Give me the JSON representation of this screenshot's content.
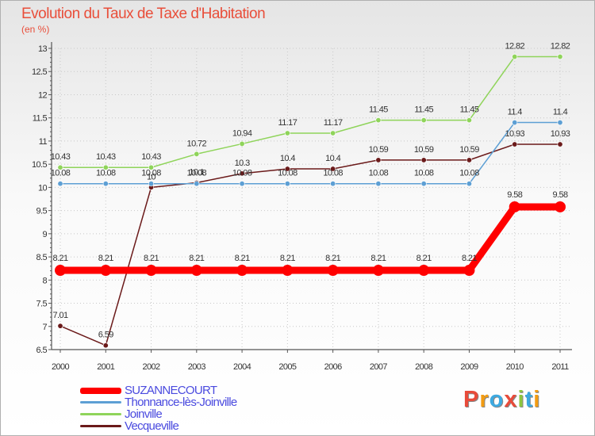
{
  "title": "Evolution du Taux de Taxe d'Habitation",
  "unit": "(en %)",
  "logo_text": "Proxiti",
  "logo_colors": [
    "#e84b3a",
    "#f39c12",
    "#3da9e0",
    "#e84b3a",
    "#8cc63f",
    "#3da9e0",
    "#f39c12"
  ],
  "chart_data": {
    "type": "line",
    "title": "Evolution du Taux de Taxe d'Habitation",
    "ylabel": "(en %)",
    "xlabel": "",
    "categories": [
      "2000",
      "2001",
      "2002",
      "2003",
      "2004",
      "2005",
      "2006",
      "2007",
      "2008",
      "2009",
      "2010",
      "2011"
    ],
    "ylim": [
      6.5,
      13
    ],
    "yticks": [
      6.5,
      7,
      7.5,
      8,
      8.5,
      9,
      9.5,
      10,
      10.5,
      11,
      11.5,
      12,
      12.5,
      13
    ],
    "series": [
      {
        "name": "SUZANNECOURT",
        "color": "#ff0000",
        "values": [
          8.21,
          8.21,
          8.21,
          8.21,
          8.21,
          8.21,
          8.21,
          8.21,
          8.21,
          8.21,
          9.58,
          9.58
        ],
        "labels": [
          "8.21",
          "8.21",
          "8.21",
          "8.21",
          "8.21",
          "8.21",
          "8.21",
          "8.21",
          "8.21",
          "8.21",
          "9.58",
          "9.58"
        ]
      },
      {
        "name": "Thonnance-lès-Joinville",
        "color": "#5d9fd4",
        "values": [
          10.08,
          10.08,
          10.08,
          10.08,
          10.08,
          10.08,
          10.08,
          10.08,
          10.08,
          10.08,
          11.4,
          11.4
        ],
        "labels": [
          "10.08",
          "10.08",
          "10.08",
          "10.08",
          "10.08",
          "10.08",
          "10.08",
          "10.08",
          "10.08",
          "10.08",
          "11.4",
          "11.4"
        ]
      },
      {
        "name": "Joinville",
        "color": "#8fd45a",
        "values": [
          10.43,
          10.43,
          10.43,
          10.72,
          10.94,
          11.17,
          11.17,
          11.45,
          11.45,
          11.45,
          12.82,
          12.82
        ],
        "labels": [
          "10.43",
          "10.43",
          "10.43",
          "10.72",
          "10.94",
          "11.17",
          "11.17",
          "11.45",
          "11.45",
          "11.45",
          "12.82",
          "12.82"
        ]
      },
      {
        "name": "Vecqueville",
        "color": "#6b1a1a",
        "values": [
          7.01,
          6.59,
          10.0,
          10.1,
          10.3,
          10.4,
          10.4,
          10.59,
          10.59,
          10.59,
          10.93,
          10.93
        ],
        "labels": [
          "7.01",
          "6.59",
          "10",
          "10.1",
          "10.3",
          "10.4",
          "10.4",
          "10.59",
          "10.59",
          "10.59",
          "10.93",
          "10.93"
        ]
      }
    ],
    "legend_position": "bottom-left",
    "grid": true
  }
}
